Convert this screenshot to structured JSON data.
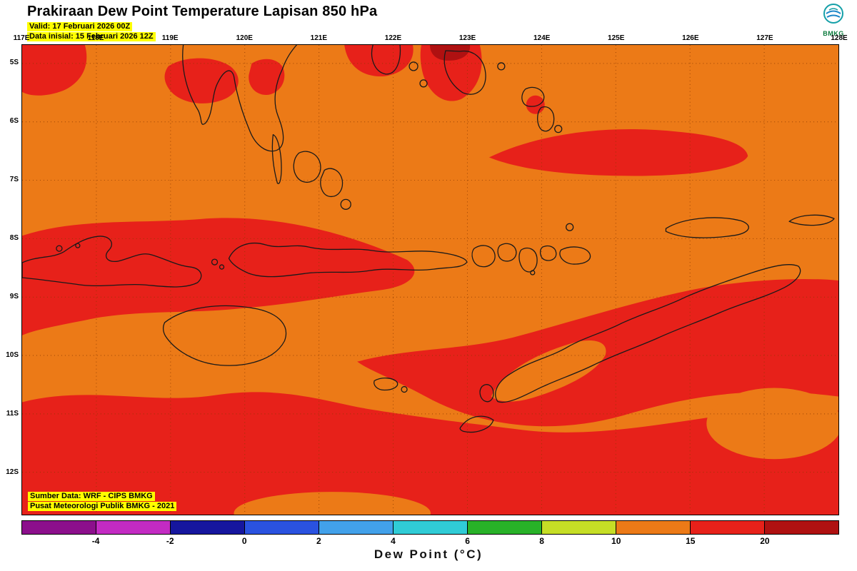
{
  "header": {
    "title": "Prakiraan Dew Point Temperature Lapisan 850 hPa",
    "valid_line": "Valid: 17 Februari 2026 00Z",
    "init_line": "Data inisial: 15 Februari 2026 12Z"
  },
  "logo": {
    "org": "BMKG"
  },
  "map": {
    "lon_labels": [
      "117E",
      "118E",
      "119E",
      "120E",
      "121E",
      "122E",
      "123E",
      "124E",
      "125E",
      "126E",
      "127E",
      "128E"
    ],
    "lat_labels": [
      "5S",
      "6S",
      "7S",
      "8S",
      "9S",
      "10S",
      "11S",
      "12S"
    ],
    "source_line1": "Sumber Data: WRF - CIPS BMKG",
    "source_line2": "Pusat Meteorologi Publik BMKG - 2021"
  },
  "legend": {
    "title": "Dew Point (°C)",
    "tick_labels": [
      "-4",
      "-2",
      "0",
      "2",
      "4",
      "6",
      "8",
      "10",
      "15",
      "20"
    ],
    "segment_colors": [
      "#8C0F8C",
      "#C32BC3",
      "#16169E",
      "#2A52E0",
      "#42A1EA",
      "#30CCD6",
      "#28B228",
      "#C6DE26",
      "#EC7A17",
      "#E7211A",
      "#AF1111"
    ]
  },
  "colors": {
    "orange": "#EC7A17",
    "red": "#E7211A",
    "darkred": "#AF1111",
    "grid": "#8B3A00",
    "coast": "#1A1A1A",
    "highlight": "#FFFF00"
  }
}
